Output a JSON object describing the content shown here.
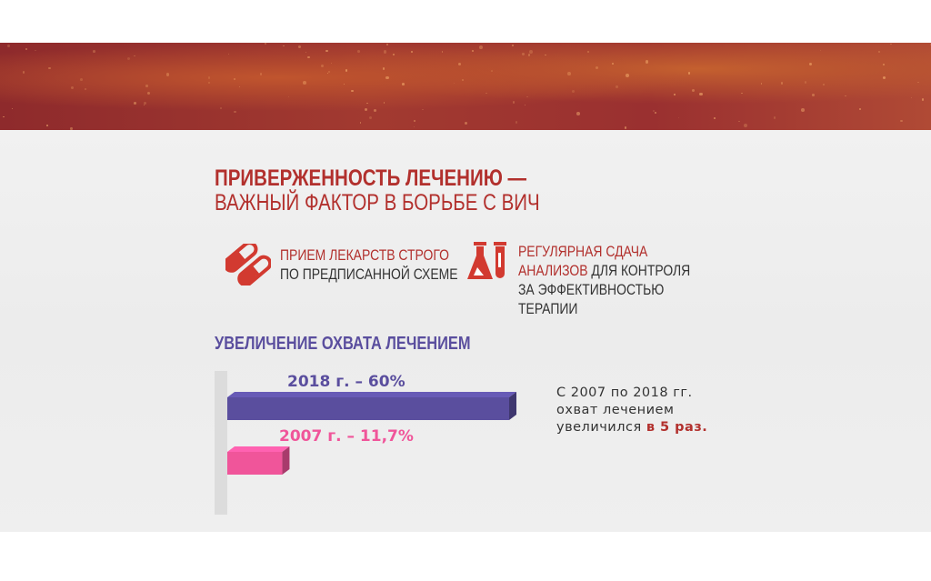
{
  "slide": {
    "title_line1": "ПРИВЕРЖЕННОСТЬ ЛЕЧЕНИЮ —",
    "title_line2": "ВАЖНЫЙ ФАКТОР В БОРЬБЕ С ВИЧ",
    "item1": {
      "icon": "pills-icon",
      "line1": "ПРИЕМ ЛЕКАРСТВ СТРОГО",
      "line2": "ПО ПРЕДПИСАННОЙ СХЕМЕ"
    },
    "item2": {
      "icon": "lab-flask-icon",
      "line1": "РЕГУЛЯРНАЯ СДАЧА",
      "line2_red": "АНАЛИЗОВ",
      "line2_rest": " ДЛЯ КОНТРОЛЯ",
      "line3": "ЗА ЭФФЕКТИВНОСТЬЮ",
      "line4": "ТЕРАПИИ"
    },
    "subtitle": "УВЕЛИЧЕНИЕ ОХВАТА ЛЕЧЕНИЕМ",
    "note": {
      "line1": "С 2007 по 2018 гг.",
      "line2": "охват лечением",
      "line3_pre": "увеличился ",
      "line3_bold": "в 5 раз",
      "line3_end": "."
    },
    "colors": {
      "accent_red": "#b2302d",
      "purple": "#5a4e9e",
      "pink": "#f0559a"
    }
  },
  "chart_data": {
    "type": "bar",
    "orientation": "horizontal",
    "title": "УВЕЛИЧЕНИЕ ОХВАТА ЛЕЧЕНИЕМ",
    "categories": [
      "2018 г.",
      "2007 г."
    ],
    "values": [
      60,
      11.7
    ],
    "unit": "%",
    "data_labels": [
      "2018 г. – 60%",
      "2007 г. – 11,7%"
    ],
    "colors": [
      "#5a4e9e",
      "#f0559a"
    ],
    "grid": false
  }
}
